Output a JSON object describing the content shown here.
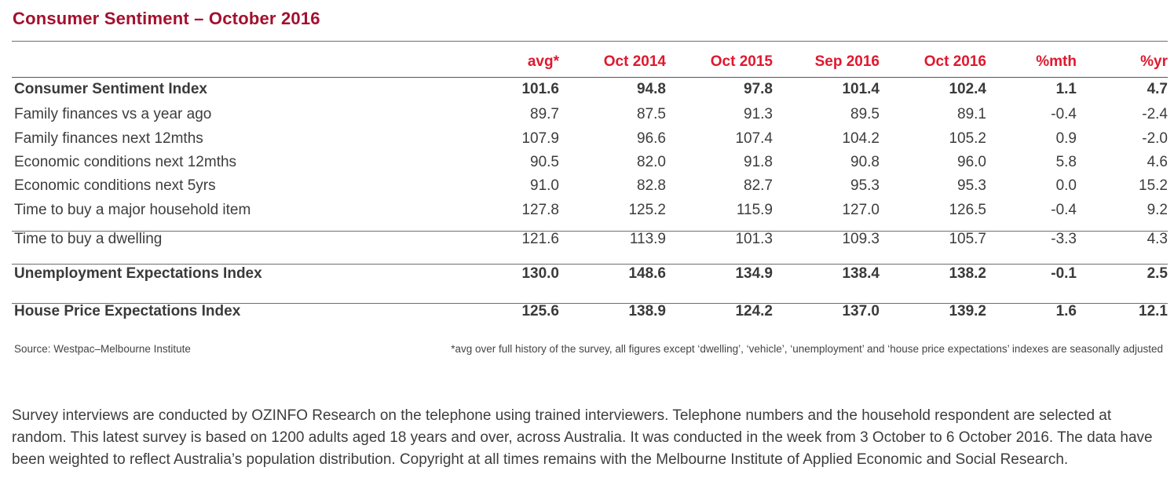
{
  "title": "Consumer Sentiment – October 2016",
  "columns": [
    "avg*",
    "Oct 2014",
    "Oct 2015",
    "Sep 2016",
    "Oct 2016",
    "%mth",
    "%yr"
  ],
  "rows": [
    {
      "label": "Consumer Sentiment Index",
      "values": [
        "101.6",
        "94.8",
        "97.8",
        "101.4",
        "102.4",
        "1.1",
        "4.7"
      ],
      "bold": true
    },
    {
      "label": "Family finances vs a year ago",
      "values": [
        "89.7",
        "87.5",
        "91.3",
        "89.5",
        "89.1",
        "-0.4",
        "-2.4"
      ]
    },
    {
      "label": "Family finances next 12mths",
      "values": [
        "107.9",
        "96.6",
        "107.4",
        "104.2",
        "105.2",
        "0.9",
        "-2.0"
      ]
    },
    {
      "label": "Economic conditions next 12mths",
      "values": [
        "90.5",
        "82.0",
        "91.8",
        "90.8",
        "96.0",
        "5.8",
        "4.6"
      ]
    },
    {
      "label": "Economic conditions next 5yrs",
      "values": [
        "91.0",
        "82.8",
        "82.7",
        "95.3",
        "95.3",
        "0.0",
        "15.2"
      ]
    },
    {
      "label": "Time to buy a major household item",
      "values": [
        "127.8",
        "125.2",
        "115.9",
        "127.0",
        "126.5",
        "-0.4",
        "9.2"
      ]
    },
    {
      "label": "Time to buy a dwelling",
      "values": [
        "121.6",
        "113.9",
        "101.3",
        "109.3",
        "105.7",
        "-3.3",
        "4.3"
      ]
    },
    {
      "label": "Unemployment Expectations Index",
      "values": [
        "130.0",
        "148.6",
        "134.9",
        "138.4",
        "138.2",
        "-0.1",
        "2.5"
      ],
      "bold": true
    },
    {
      "label": "House Price Expectations Index",
      "values": [
        "125.6",
        "138.9",
        "124.2",
        "137.0",
        "139.2",
        "1.6",
        "12.1"
      ],
      "bold": true
    }
  ],
  "footnote_source": "Source: Westpac–Melbourne Institute",
  "footnote_avg": "*avg over full history of the survey, all figures except ‘dwelling’, ‘vehicle’, ‘unemployment’ and ‘house price expectations’ indexes are seasonally adjusted",
  "paragraph": "Survey interviews are conducted by OZINFO Research on the telephone using trained interviewers. Telephone numbers and the household respondent are selected at random. This latest survey is based on 1200 adults aged 18 years and over, across Australia. It was conducted in the week from 3 October to 6 October 2016. The data have been weighted to reflect Australia’s population distribution. Copyright at all times remains with the Melbourne Institute of Applied Economic and Social Research.",
  "colors": {
    "title": "#a3102e",
    "header": "#e0182d",
    "text": "#3d3d3d"
  }
}
